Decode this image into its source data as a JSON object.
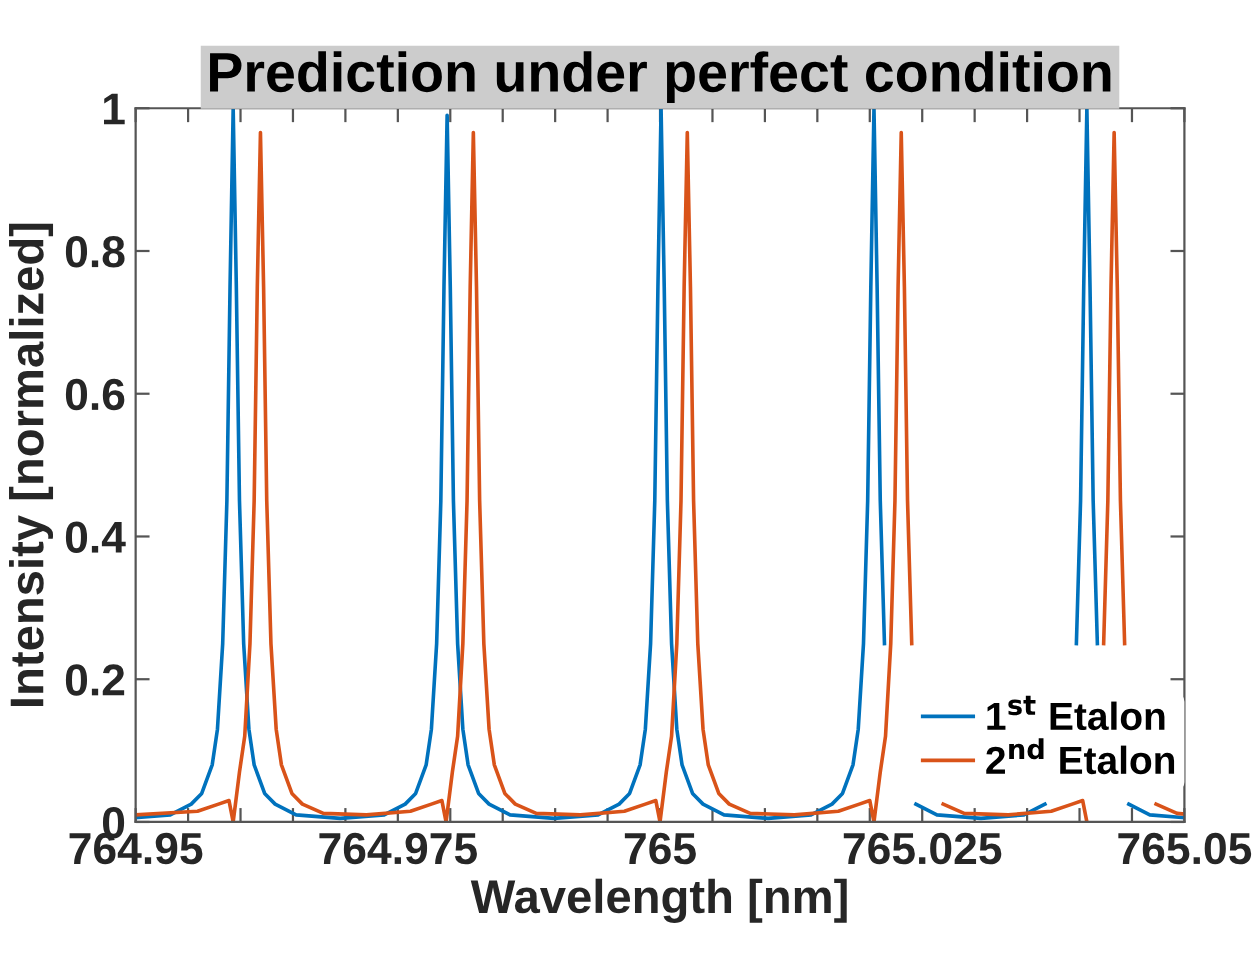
{
  "chart_data": {
    "type": "line",
    "title": "Prediction under perfect condition",
    "xlabel": "Wavelength [nm]",
    "ylabel": "Intensity [normalized]",
    "xlim": [
      764.95,
      765.05
    ],
    "ylim": [
      0,
      1
    ],
    "xticks": [
      {
        "value": 764.95,
        "label": "764.95"
      },
      {
        "value": 764.955,
        "label": null
      },
      {
        "value": 764.96,
        "label": null
      },
      {
        "value": 764.965,
        "label": null
      },
      {
        "value": 764.97,
        "label": null
      },
      {
        "value": 764.975,
        "label": "764.975"
      },
      {
        "value": 764.98,
        "label": null
      },
      {
        "value": 764.985,
        "label": null
      },
      {
        "value": 764.99,
        "label": null
      },
      {
        "value": 764.995,
        "label": null
      },
      {
        "value": 765,
        "label": "765"
      },
      {
        "value": 765.005,
        "label": null
      },
      {
        "value": 765.01,
        "label": null
      },
      {
        "value": 765.015,
        "label": null
      },
      {
        "value": 765.02,
        "label": null
      },
      {
        "value": 765.025,
        "label": "765.025"
      },
      {
        "value": 765.03,
        "label": null
      },
      {
        "value": 765.035,
        "label": null
      },
      {
        "value": 765.04,
        "label": null
      },
      {
        "value": 765.045,
        "label": null
      },
      {
        "value": 765.05,
        "label": "765.05"
      }
    ],
    "yticks": [
      0,
      0.2,
      0.4,
      0.6,
      0.8,
      1
    ],
    "grid": false,
    "legend": "bottom right",
    "marker": "none",
    "line_style": "solid",
    "series": [
      {
        "name": "1$^{st}$ Etalon",
        "color": "#0072bd",
        "x": [
          764.95,
          764.9533,
          764.9553,
          764.9563,
          764.9573,
          764.9578,
          764.9583,
          764.9587,
          764.959,
          764.9593,
          764.9596,
          764.9599,
          764.9603,
          764.9608,
          764.9613,
          764.9623,
          764.9633,
          764.9653,
          764.9695,
          764.9737,
          764.9757,
          764.9767,
          764.9777,
          764.9782,
          764.9787,
          764.9791,
          764.9794,
          764.9797,
          764.98,
          764.9803,
          764.9807,
          764.9812,
          764.9817,
          764.9827,
          764.9837,
          764.9857,
          764.9899,
          764.9941,
          764.9961,
          764.9971,
          764.9981,
          764.9986,
          764.9991,
          764.9995,
          764.9998,
          765.0001,
          765.0004,
          765.0007,
          765.0011,
          765.0016,
          765.0021,
          765.0031,
          765.0041,
          765.0061,
          765.0103,
          765.0144,
          765.0164,
          765.0174,
          765.0184,
          765.0189,
          765.0194,
          765.0198,
          765.0201,
          765.0204,
          765.0207,
          765.021,
          765.0214,
          765.0219,
          765.0224,
          765.0234,
          765.0244,
          765.0264,
          765.0306,
          765.0347,
          765.0367,
          765.0377,
          765.0387,
          765.0392,
          765.0397,
          765.0401,
          765.0404,
          765.0407,
          765.041,
          765.0413,
          765.0417,
          765.0422,
          765.0427,
          765.0437,
          765.0447,
          765.0467,
          765.05
        ],
        "values": [
          0.006,
          0.01,
          0.025,
          0.04,
          0.08,
          0.13,
          0.25,
          0.45,
          0.75,
          1,
          0.75,
          0.45,
          0.25,
          0.13,
          0.08,
          0.04,
          0.025,
          0.01,
          0.005,
          0.01,
          0.025,
          0.04,
          0.08,
          0.13,
          0.25,
          0.45,
          0.75,
          0.99,
          0.75,
          0.45,
          0.25,
          0.13,
          0.08,
          0.04,
          0.025,
          0.01,
          0.005,
          0.01,
          0.025,
          0.04,
          0.08,
          0.13,
          0.25,
          0.45,
          0.75,
          1,
          0.75,
          0.45,
          0.25,
          0.13,
          0.08,
          0.04,
          0.025,
          0.01,
          0.005,
          0.01,
          0.025,
          0.04,
          0.08,
          0.13,
          0.25,
          0.45,
          0.75,
          1,
          0.75,
          0.45,
          0.25,
          null,
          null,
          null,
          0.025,
          0.01,
          0.005,
          0.01,
          0.025,
          null,
          null,
          null,
          0.25,
          0.45,
          0.75,
          1,
          0.75,
          0.45,
          0.25,
          null,
          null,
          null,
          0.025,
          0.01,
          0.006
        ]
      },
      {
        "name": "2$^{nd}$ Etalon",
        "color": "#d95319",
        "x": [
          764.95,
          764.9559,
          764.9579,
          764.9589,
          764.9593,
          764.9599,
          764.9604,
          764.9609,
          764.9613,
          764.9616,
          764.9619,
          764.9622,
          764.9625,
          764.9629,
          764.9634,
          764.9639,
          764.9649,
          764.9659,
          764.9679,
          764.972,
          764.9762,
          764.9782,
          764.9792,
          764.9796,
          764.9802,
          764.9807,
          764.9812,
          764.9816,
          764.9819,
          764.9822,
          764.9825,
          764.9828,
          764.9832,
          764.9837,
          764.9842,
          764.9852,
          764.9862,
          764.9882,
          764.9924,
          764.9966,
          764.9986,
          764.9996,
          765.0,
          765.0006,
          765.0011,
          765.0016,
          765.002,
          765.0023,
          765.0026,
          765.0029,
          765.0032,
          765.0036,
          765.0041,
          765.0046,
          765.0056,
          765.0066,
          765.0086,
          765.0128,
          765.017,
          765.019,
          765.02,
          765.0204,
          765.021,
          765.0215,
          765.022,
          765.0224,
          765.0227,
          765.023,
          765.0233,
          765.0236,
          765.024,
          765.0245,
          765.025,
          765.026,
          765.027,
          765.029,
          765.0332,
          765.0373,
          765.0393,
          765.0403,
          765.0407,
          765.0413,
          765.0418,
          765.0423,
          765.0427,
          765.043,
          765.0433,
          765.0436,
          765.0439,
          765.0443,
          765.0448,
          765.0453,
          765.0463,
          765.0473,
          765.0493,
          765.05
        ],
        "values": [
          0.01,
          0.015,
          0.025,
          0.03,
          0,
          0.07,
          0.12,
          0.25,
          0.45,
          0.75,
          0.966,
          0.75,
          0.45,
          0.25,
          0.13,
          0.08,
          0.04,
          0.025,
          0.012,
          0.01,
          0.015,
          0.025,
          0.03,
          0,
          0.07,
          0.12,
          0.25,
          0.45,
          0.75,
          0.966,
          0.75,
          0.45,
          0.25,
          0.13,
          0.08,
          0.04,
          0.025,
          0.012,
          0.01,
          0.015,
          0.025,
          0.03,
          0,
          0.07,
          0.12,
          0.25,
          0.45,
          0.75,
          0.966,
          0.75,
          0.45,
          0.25,
          0.13,
          0.08,
          0.04,
          0.025,
          0.012,
          0.01,
          0.015,
          0.025,
          0.03,
          0,
          0.07,
          0.12,
          0.25,
          0.45,
          0.75,
          0.966,
          0.75,
          0.45,
          0.25,
          null,
          null,
          null,
          0.025,
          0.012,
          0.01,
          0.015,
          0.025,
          0.03,
          0,
          null,
          null,
          0.25,
          0.45,
          0.75,
          0.966,
          0.75,
          0.45,
          0.25,
          null,
          null,
          null,
          0.025,
          0.012,
          0.011
        ]
      }
    ]
  }
}
